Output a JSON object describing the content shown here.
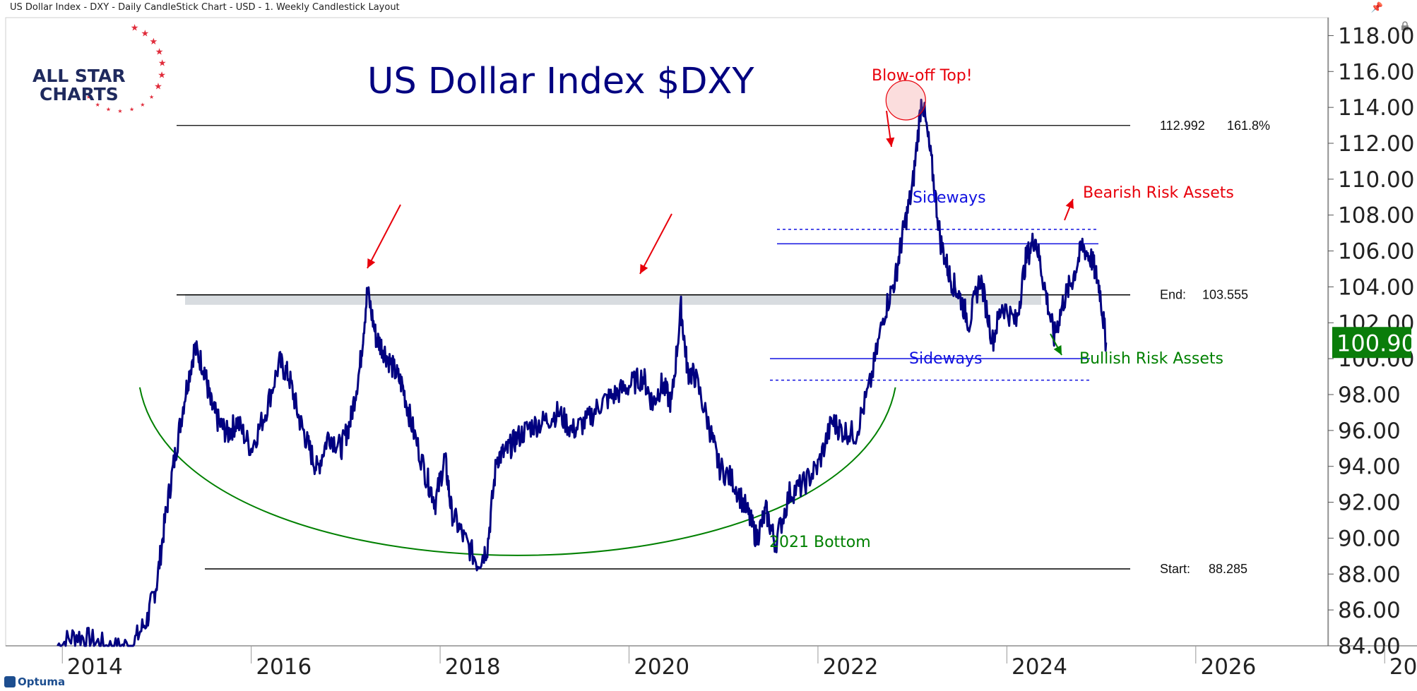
{
  "window_title": "US Dollar Index - DXY - Daily CandleStick Chart - USD - 1. Weekly Candlestick Layout",
  "logo": {
    "line1": "ALL STAR",
    "line2": "CHARTS"
  },
  "branding": "Optuma",
  "colors": {
    "series": "#000080",
    "annotation_red": "#e8000b",
    "annotation_green": "#008000",
    "annotation_blue": "#1010e0",
    "price_label_bg": "#0a7d0a"
  },
  "chart_data": {
    "type": "line",
    "title": "US Dollar Index $DXY",
    "xlabel": "",
    "ylabel": "",
    "xlim": [
      2013.0,
      2027.0
    ],
    "ylim": [
      84.0,
      119.0
    ],
    "x_ticks": [
      "2014",
      "2016",
      "2018",
      "2020",
      "2022",
      "2024",
      "2026",
      "20"
    ],
    "y_ticks": [
      "118.00",
      "116.00",
      "114.00",
      "112.00",
      "110.00",
      "108.00",
      "106.00",
      "104.00",
      "102.00",
      "100.00",
      "98.00",
      "96.00",
      "94.00",
      "92.00",
      "90.00",
      "88.00",
      "86.00",
      "84.00"
    ],
    "last_price": "100.90",
    "series": [
      {
        "x": [
          2013.55,
          2013.75,
          2013.95,
          2014.15,
          2014.35,
          2014.5,
          2014.6,
          2014.7,
          2014.8,
          2014.9,
          2015.0,
          2015.1,
          2015.17,
          2015.25,
          2015.35,
          2015.45,
          2015.6,
          2015.75,
          2015.9,
          2016.0,
          2016.1,
          2016.2,
          2016.3,
          2016.42,
          2016.55,
          2016.65,
          2016.75,
          2016.83,
          2016.92,
          2017.0,
          2017.1,
          2017.2,
          2017.3,
          2017.45,
          2017.55,
          2017.65,
          2017.72,
          2017.85,
          2018.0,
          2018.1,
          2018.2,
          2018.3,
          2018.4,
          2018.55,
          2018.7,
          2018.85,
          2019.0,
          2019.15,
          2019.3,
          2019.45,
          2019.6,
          2019.75,
          2019.85,
          2019.95,
          2020.05,
          2020.15,
          2020.22,
          2020.3,
          2020.45,
          2020.55,
          2020.7,
          2020.85,
          2020.95,
          2021.05,
          2021.15,
          2021.3,
          2021.45,
          2021.6,
          2021.75,
          2021.85,
          2022.0,
          2022.15,
          2022.3,
          2022.42,
          2022.5,
          2022.6,
          2022.7,
          2022.8,
          2022.9,
          2023.0,
          2023.1,
          2023.2,
          2023.32,
          2023.45,
          2023.55,
          2023.7,
          2023.8,
          2023.9,
          2024.0,
          2024.1,
          2024.2,
          2024.3,
          2024.4,
          2024.5,
          2024.58,
          2024.65
        ],
        "y": [
          84.0,
          84.6,
          84.2,
          83.8,
          84.1,
          85.5,
          87.5,
          91.5,
          94.8,
          98.0,
          100.6,
          99.5,
          97.5,
          96.5,
          95.8,
          96.5,
          95.0,
          97.0,
          99.8,
          99.0,
          96.8,
          95.2,
          93.8,
          95.8,
          95.0,
          96.5,
          99.5,
          103.8,
          101.2,
          100.5,
          99.5,
          98.5,
          96.3,
          93.5,
          92.0,
          94.5,
          91.5,
          90.0,
          88.6,
          89.5,
          94.5,
          94.8,
          95.5,
          96.2,
          96.5,
          97.0,
          96.0,
          96.5,
          97.5,
          98.0,
          98.5,
          99.0,
          97.5,
          98.6,
          97.5,
          102.8,
          99.3,
          99.0,
          96.2,
          94.0,
          93.2,
          91.5,
          90.0,
          91.5,
          89.7,
          92.5,
          93.0,
          94.0,
          96.5,
          96.0,
          95.8,
          98.5,
          102.5,
          104.5,
          107.0,
          109.5,
          114.6,
          111.0,
          106.5,
          104.5,
          103.5,
          102.0,
          104.5,
          101.0,
          103.0,
          102.0,
          105.5,
          106.8,
          104.0,
          101.2,
          103.2,
          104.5,
          106.3,
          105.5,
          104.0,
          100.9
        ]
      }
    ],
    "annotations": {
      "blowoff": "Blow-off Top!",
      "sideways_top": "Sideways",
      "sideways_bottom": "Sideways",
      "bearish": "Bearish Risk Assets",
      "bullish": "Bullish Risk Assets",
      "bottom_label": "2021 Bottom",
      "level_fib_value": "112.992",
      "level_fib_pct": "161.8%",
      "level_end_label": "End:",
      "level_end_value": "103.555",
      "level_start_label": "Start:",
      "level_start_value": "88.285"
    },
    "levels": {
      "fib": 112.992,
      "end": 103.555,
      "start": 88.285,
      "range_top_dotted": 107.2,
      "range_top_solid": 106.4,
      "range_bottom_solid": 100.0,
      "range_bottom_dotted": 98.8,
      "resistance_zone": [
        103.0,
        103.6
      ]
    }
  }
}
